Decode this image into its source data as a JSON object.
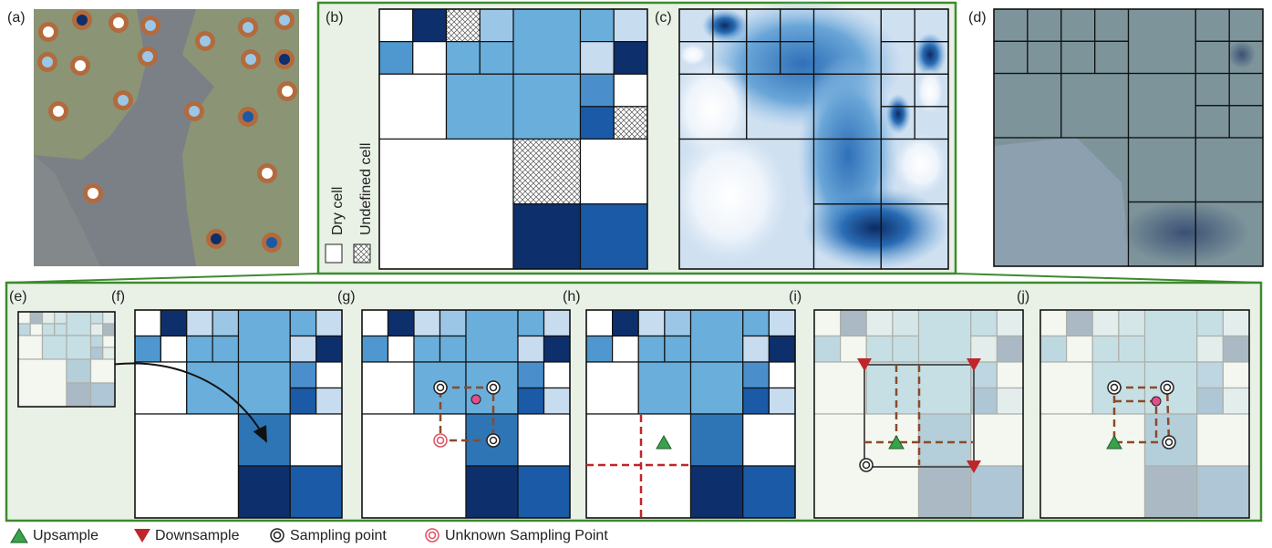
{
  "panel_labels": [
    "(a)",
    "(b)",
    "(c)",
    "(d)",
    "(e)",
    "(f)",
    "(g)",
    "(h)",
    "(i)",
    "(j)"
  ],
  "cell_legend": {
    "dry": "Dry cell",
    "undefined": "Undefined cell"
  },
  "legend": [
    "Upsample",
    "Downsample",
    "Sampling point",
    "Unknown Sampling Point"
  ]
}
